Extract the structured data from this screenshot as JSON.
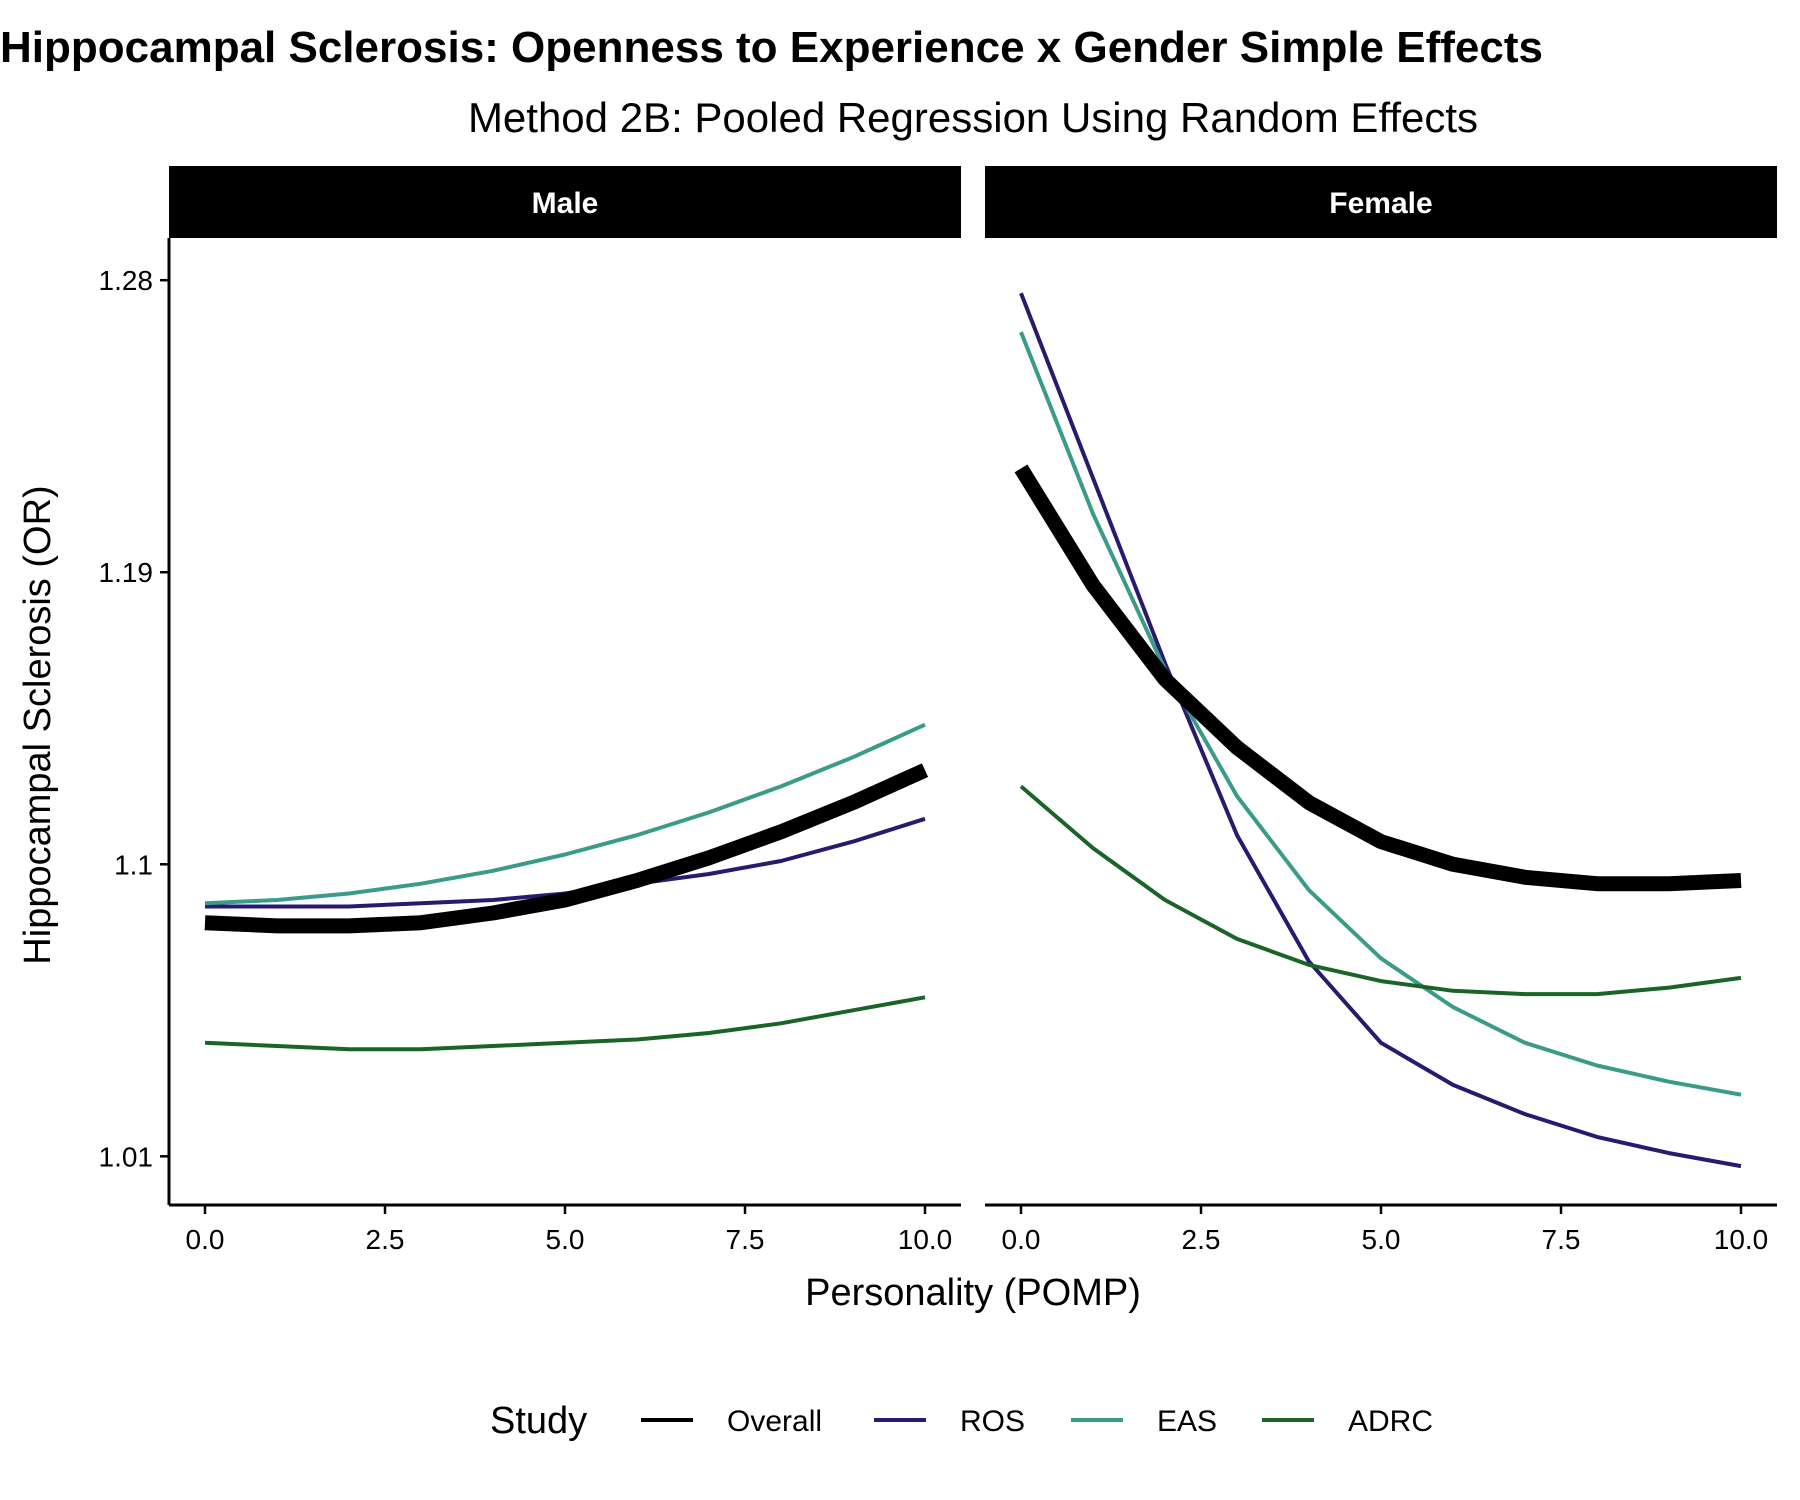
{
  "chart_data": {
    "type": "line",
    "title": "Hippocampal Sclerosis: Openness to Experience x Gender Simple Effects",
    "subtitle": "Method 2B: Pooled Regression Using Random Effects",
    "xlabel": "Personality (POMP)",
    "ylabel": "Hippocampal Sclerosis (OR)",
    "xlim": [
      -0.5,
      10.5
    ],
    "ylim": [
      0.995,
      1.293
    ],
    "x_ticks": [
      0,
      2.5,
      5,
      7.5,
      10
    ],
    "x_tick_labels": [
      "0.0",
      "2.5",
      "5.0",
      "7.5",
      "10.0"
    ],
    "y_ticks": [
      1.01,
      1.1,
      1.19,
      1.28
    ],
    "y_tick_labels": [
      "1.01",
      "1.1",
      "1.19",
      "1.28"
    ],
    "x": [
      0,
      1,
      2,
      3,
      4,
      5,
      6,
      7,
      8,
      9,
      10
    ],
    "legend": {
      "title": "Study",
      "position": "bottom",
      "entries": [
        "Overall",
        "ROS",
        "EAS",
        "ADRC"
      ]
    },
    "colors": {
      "Overall": "#000000",
      "ROS": "#281a6e",
      "EAS": "#3a9c88",
      "ADRC": "#1b6428"
    },
    "panels": [
      {
        "label": "Male",
        "series": [
          {
            "name": "Overall",
            "values": [
              1.082,
              1.081,
              1.081,
              1.082,
              1.085,
              1.089,
              1.095,
              1.102,
              1.11,
              1.119,
              1.129
            ]
          },
          {
            "name": "ROS",
            "values": [
              1.087,
              1.087,
              1.087,
              1.088,
              1.089,
              1.091,
              1.094,
              1.097,
              1.101,
              1.107,
              1.114
            ]
          },
          {
            "name": "EAS",
            "values": [
              1.088,
              1.089,
              1.091,
              1.094,
              1.098,
              1.103,
              1.109,
              1.116,
              1.124,
              1.133,
              1.143
            ]
          },
          {
            "name": "ADRC",
            "values": [
              1.045,
              1.044,
              1.043,
              1.043,
              1.044,
              1.045,
              1.046,
              1.048,
              1.051,
              1.055,
              1.059
            ]
          }
        ]
      },
      {
        "label": "Female",
        "series": [
          {
            "name": "Overall",
            "values": [
              1.222,
              1.186,
              1.157,
              1.136,
              1.119,
              1.107,
              1.1,
              1.096,
              1.094,
              1.094,
              1.095
            ]
          },
          {
            "name": "ROS",
            "values": [
              1.276,
              1.219,
              1.162,
              1.109,
              1.07,
              1.045,
              1.032,
              1.023,
              1.016,
              1.011,
              1.007
            ]
          },
          {
            "name": "EAS",
            "values": [
              1.264,
              1.208,
              1.16,
              1.121,
              1.092,
              1.071,
              1.056,
              1.045,
              1.038,
              1.033,
              1.029
            ]
          },
          {
            "name": "ADRC",
            "values": [
              1.124,
              1.105,
              1.089,
              1.077,
              1.069,
              1.064,
              1.061,
              1.06,
              1.06,
              1.062,
              1.065
            ]
          }
        ]
      }
    ]
  }
}
